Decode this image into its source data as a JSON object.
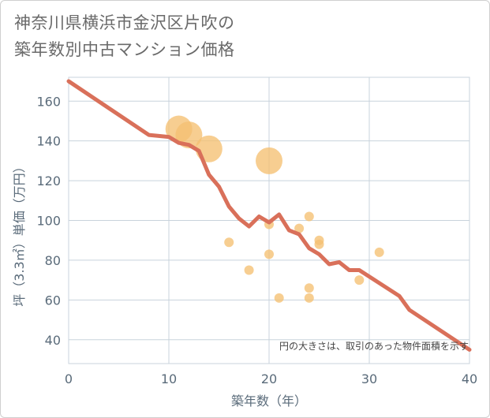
{
  "title": {
    "line1": "神奈川県横浜市金沢区片吹の",
    "line2": "築年数別中古マンション価格"
  },
  "chart_data": {
    "type": "scatter",
    "xlabel": "築年数（年）",
    "ylabel": "坪（3.3㎡）単価（万円）",
    "xlim": [
      0,
      40
    ],
    "ylim": [
      28,
      172
    ],
    "xticks": [
      0,
      10,
      20,
      30,
      40
    ],
    "yticks": [
      40,
      60,
      80,
      100,
      120,
      140,
      160
    ],
    "grid": true,
    "note": "円の大きさは、取引のあった物件面積を示す",
    "colors": {
      "points": "#f5c072",
      "line": "#d9705a",
      "grid": "#c8d3dc",
      "text": "#5a6b7a"
    },
    "points": [
      {
        "x": 11,
        "y": 146,
        "size": 3
      },
      {
        "x": 12,
        "y": 143,
        "size": 3
      },
      {
        "x": 14,
        "y": 136,
        "size": 3
      },
      {
        "x": 20,
        "y": 130,
        "size": 3
      },
      {
        "x": 16,
        "y": 89,
        "size": 1
      },
      {
        "x": 18,
        "y": 75,
        "size": 1
      },
      {
        "x": 20,
        "y": 98,
        "size": 1
      },
      {
        "x": 20,
        "y": 83,
        "size": 1
      },
      {
        "x": 21,
        "y": 61,
        "size": 1
      },
      {
        "x": 23,
        "y": 96,
        "size": 1
      },
      {
        "x": 24,
        "y": 102,
        "size": 1
      },
      {
        "x": 24,
        "y": 66,
        "size": 1
      },
      {
        "x": 24,
        "y": 61,
        "size": 1
      },
      {
        "x": 25,
        "y": 90,
        "size": 1
      },
      {
        "x": 25,
        "y": 88,
        "size": 1
      },
      {
        "x": 29,
        "y": 70,
        "size": 1
      },
      {
        "x": 31,
        "y": 84,
        "size": 1
      }
    ],
    "trend": [
      {
        "x": 0,
        "y": 170
      },
      {
        "x": 8,
        "y": 143
      },
      {
        "x": 10,
        "y": 142
      },
      {
        "x": 11,
        "y": 139
      },
      {
        "x": 12,
        "y": 138
      },
      {
        "x": 13,
        "y": 135
      },
      {
        "x": 14,
        "y": 123
      },
      {
        "x": 15,
        "y": 117
      },
      {
        "x": 16,
        "y": 107
      },
      {
        "x": 17,
        "y": 101
      },
      {
        "x": 18,
        "y": 97
      },
      {
        "x": 19,
        "y": 102
      },
      {
        "x": 20,
        "y": 99
      },
      {
        "x": 21,
        "y": 103
      },
      {
        "x": 22,
        "y": 95
      },
      {
        "x": 23,
        "y": 93
      },
      {
        "x": 24,
        "y": 86
      },
      {
        "x": 25,
        "y": 83
      },
      {
        "x": 26,
        "y": 78
      },
      {
        "x": 27,
        "y": 79
      },
      {
        "x": 28,
        "y": 75
      },
      {
        "x": 29,
        "y": 75
      },
      {
        "x": 33,
        "y": 62
      },
      {
        "x": 34,
        "y": 55
      },
      {
        "x": 40,
        "y": 35
      }
    ]
  }
}
